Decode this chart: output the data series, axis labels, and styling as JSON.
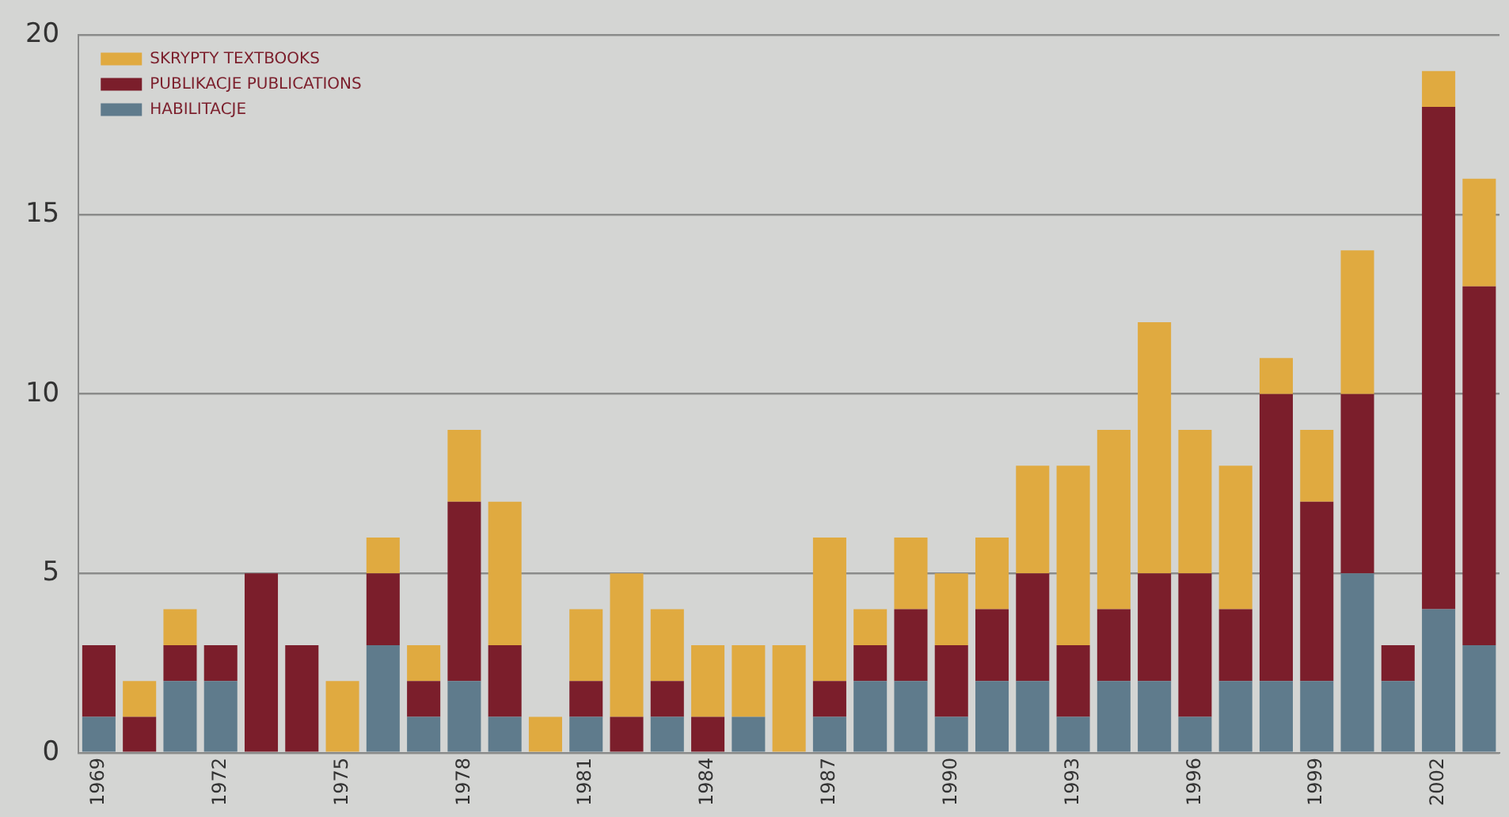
{
  "chart_data": {
    "type": "bar",
    "stacked": true,
    "categories": [
      "1969",
      null,
      null,
      "1972",
      null,
      null,
      "1975",
      null,
      null,
      "1978",
      null,
      null,
      "1981",
      null,
      null,
      "1984",
      null,
      null,
      "1987",
      null,
      null,
      "1990",
      null,
      null,
      "1993",
      null,
      null,
      "1996",
      null,
      null,
      "1999",
      null,
      null,
      "2002",
      null
    ],
    "series": [
      {
        "name": "HABILITACJE",
        "color": "#5f7b8c",
        "values": [
          1,
          0,
          2,
          2,
          0,
          0,
          0,
          3,
          1,
          2,
          1,
          0,
          1,
          0,
          1,
          0,
          1,
          0,
          1,
          2,
          2,
          1,
          2,
          2,
          1,
          2,
          2,
          1,
          2,
          2,
          2,
          5,
          2,
          4,
          3
        ]
      },
      {
        "name": "PUBLIKACJE PUBLICATIONS",
        "color": "#7b1e2b",
        "values": [
          2,
          1,
          1,
          1,
          5,
          3,
          0,
          2,
          1,
          5,
          2,
          0,
          1,
          1,
          1,
          1,
          0,
          0,
          1,
          1,
          2,
          2,
          2,
          3,
          2,
          2,
          3,
          4,
          2,
          8,
          5,
          5,
          1,
          14,
          10
        ]
      },
      {
        "name": "SKRYPTY TEXTBOOKS",
        "color": "#e0aa40",
        "values": [
          0,
          1,
          1,
          0,
          0,
          0,
          2,
          1,
          1,
          2,
          4,
          1,
          2,
          4,
          2,
          2,
          2,
          3,
          4,
          1,
          2,
          2,
          2,
          3,
          5,
          5,
          7,
          4,
          4,
          1,
          2,
          4,
          0,
          1,
          3
        ]
      }
    ],
    "ylim": [
      0,
      20
    ],
    "yticks": [
      0,
      5,
      10,
      15,
      20
    ],
    "grid": "y",
    "legend": "top left"
  }
}
